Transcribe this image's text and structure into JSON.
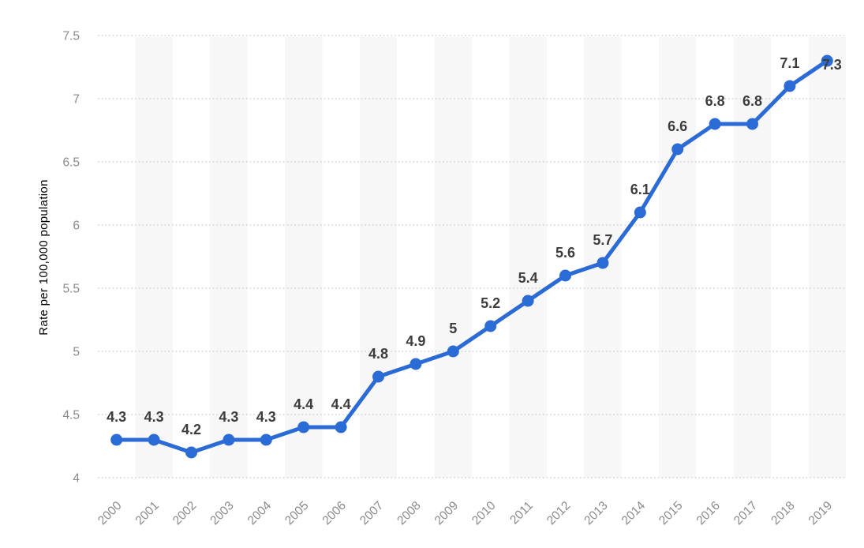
{
  "chart_data": {
    "type": "line",
    "title": "",
    "xlabel": "",
    "ylabel": "Rate per 100,000 population",
    "categories": [
      "2000",
      "2001",
      "2002",
      "2003",
      "2004",
      "2005",
      "2006",
      "2007",
      "2008",
      "2009",
      "2010",
      "2011",
      "2012",
      "2013",
      "2014",
      "2015",
      "2016",
      "2017",
      "2018",
      "2019"
    ],
    "values": [
      4.3,
      4.3,
      4.2,
      4.3,
      4.3,
      4.4,
      4.4,
      4.8,
      4.9,
      5.0,
      5.2,
      5.4,
      5.6,
      5.7,
      6.1,
      6.6,
      6.8,
      6.8,
      7.1,
      7.3
    ],
    "point_labels": [
      "4.3",
      "4.3",
      "4.2",
      "4.3",
      "4.3",
      "4.4",
      "4.4",
      "4.8",
      "4.9",
      "5",
      "5.2",
      "5.4",
      "5.6",
      "5.7",
      "6.1",
      "6.6",
      "6.8",
      "6.8",
      "7.1",
      "7.3"
    ],
    "y_ticks": [
      {
        "value": 4,
        "label": "4"
      },
      {
        "value": 4.5,
        "label": "4.5"
      },
      {
        "value": 5,
        "label": "5"
      },
      {
        "value": 5.5,
        "label": "5.5"
      },
      {
        "value": 6,
        "label": "6"
      },
      {
        "value": 6.5,
        "label": "6.5"
      },
      {
        "value": 7,
        "label": "7"
      },
      {
        "value": 7.5,
        "label": "7.5"
      }
    ],
    "ylim": [
      4,
      7.5
    ],
    "grid": "horizontal-dotted",
    "legend": "none",
    "colors": {
      "line": "#2b6bd6",
      "marker": "#2b6bd6",
      "stripe": "#f7f7f7",
      "gridline": "#c9c9c9",
      "tick_text": "#8a8a8a",
      "axis_title_text": "#8a8a8a",
      "point_label_text": "#3d3d3d",
      "background": "#ffffff"
    }
  }
}
